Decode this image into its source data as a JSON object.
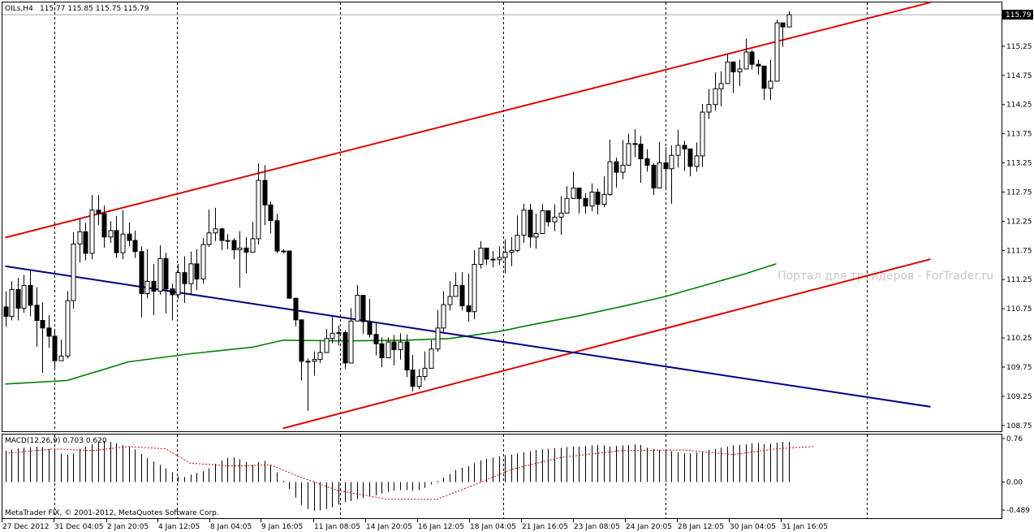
{
  "header": {
    "symbol": "OILs,H4",
    "ohlc": "115.77 115.85 115.75 115.79"
  },
  "macd": {
    "label": "MACD(12,26,9) 0.703 0.620",
    "axis_ticks": [
      "0.76",
      "0.00",
      "-0.489"
    ]
  },
  "copyright": "MetaTrader FIX, © 2001-2012, MetaQuotes Software Corp.",
  "watermark": "Портал для трейдеров - ForTrader.ru",
  "price_axis": {
    "ticks": [
      "115.25",
      "114.75",
      "114.25",
      "113.75",
      "113.25",
      "112.75",
      "112.25",
      "111.75",
      "111.25",
      "110.75",
      "110.25",
      "109.75",
      "109.25",
      "108.75"
    ],
    "current_price": "115.79"
  },
  "time_axis": {
    "labels": [
      "27 Dec 2012",
      "31 Dec 04:05",
      "2 Jan 20:05",
      "4 Jan 12:05",
      "8 Jan 04:05",
      "9 Jan 16:05",
      "11 Jan 08:05",
      "14 Jan 20:05",
      "16 Jan 12:05",
      "18 Jan 04:05",
      "21 Jan 16:05",
      "23 Jan 08:05",
      "24 Jan 20:05",
      "28 Jan 12:05",
      "30 Jan 04:05",
      "31 Jan 16:05"
    ]
  },
  "colors": {
    "channel": "#e00000",
    "trend": "#00007f",
    "moving_average": "#007f00",
    "signal": "#e00000"
  },
  "chart_data": {
    "type": "candlestick",
    "ylim": [
      108.65,
      116.0
    ],
    "candles": [
      [
        110.78,
        110.62,
        111.05,
        110.44
      ],
      [
        110.62,
        111.08,
        111.22,
        110.55
      ],
      [
        111.08,
        110.76,
        111.28,
        110.55
      ],
      [
        110.76,
        111.15,
        111.33,
        110.68
      ],
      [
        111.15,
        110.81,
        111.42,
        110.62
      ],
      [
        110.81,
        110.55,
        111.12,
        110.1
      ],
      [
        110.55,
        110.42,
        110.86,
        109.65
      ],
      [
        110.42,
        110.28,
        110.64,
        110.08
      ],
      [
        110.28,
        109.86,
        110.39,
        109.72
      ],
      [
        109.86,
        109.94,
        110.22,
        109.86
      ],
      [
        109.94,
        110.89,
        111.05,
        109.9
      ],
      [
        110.89,
        111.86,
        112.06,
        110.75
      ],
      [
        111.86,
        112.07,
        112.29,
        111.54
      ],
      [
        112.07,
        111.7,
        112.22,
        111.58
      ],
      [
        111.7,
        112.44,
        112.7,
        111.6
      ],
      [
        112.44,
        112.38,
        112.7,
        112.18
      ],
      [
        112.38,
        111.98,
        112.52,
        111.8
      ],
      [
        111.98,
        112.09,
        112.25,
        111.88
      ],
      [
        112.09,
        111.71,
        112.34,
        111.62
      ],
      [
        111.71,
        112.03,
        112.44,
        111.6
      ],
      [
        112.03,
        111.92,
        112.23,
        111.82
      ],
      [
        111.92,
        111.73,
        112.09,
        111.62
      ],
      [
        111.73,
        111.01,
        111.82,
        110.6
      ],
      [
        111.01,
        111.22,
        111.77,
        110.93
      ],
      [
        111.22,
        111.05,
        111.52,
        110.64
      ],
      [
        111.05,
        111.61,
        111.84,
        110.99
      ],
      [
        111.61,
        111.09,
        111.71,
        110.67
      ],
      [
        111.09,
        110.99,
        111.18,
        110.55
      ],
      [
        110.99,
        111.37,
        111.52,
        110.92
      ],
      [
        111.37,
        111.18,
        111.65,
        110.85
      ],
      [
        111.18,
        111.52,
        111.73,
        111.01
      ],
      [
        111.52,
        111.26,
        111.77,
        111.07
      ],
      [
        111.26,
        111.85,
        111.96,
        111.18
      ],
      [
        111.85,
        112.05,
        112.45,
        111.81
      ],
      [
        112.05,
        112.12,
        112.48,
        111.91
      ],
      [
        112.12,
        111.92,
        112.14,
        111.75
      ],
      [
        111.92,
        111.92,
        112.03,
        111.77
      ],
      [
        111.92,
        111.76,
        111.96,
        111.6
      ],
      [
        111.76,
        111.79,
        112.08,
        111.11
      ],
      [
        111.79,
        111.72,
        111.98,
        111.36
      ],
      [
        111.72,
        111.95,
        112.24,
        111.84
      ],
      [
        111.95,
        112.95,
        113.24,
        111.85
      ],
      [
        112.95,
        112.53,
        113.21,
        112.18
      ],
      [
        112.53,
        112.26,
        112.59,
        112.04
      ],
      [
        112.26,
        111.74,
        112.38,
        111.7
      ],
      [
        111.74,
        111.74,
        111.77,
        111.7
      ],
      [
        111.74,
        110.93,
        111.15,
        110.93
      ],
      [
        110.93,
        110.56,
        110.93,
        110.45
      ],
      [
        110.56,
        109.85,
        110.39,
        109.52
      ],
      [
        109.85,
        109.85,
        109.9,
        109.0
      ],
      [
        109.85,
        109.88,
        110.02,
        109.6
      ],
      [
        109.88,
        110.0,
        110.21,
        109.82
      ],
      [
        110.0,
        110.24,
        110.4,
        110.01
      ],
      [
        110.24,
        110.33,
        110.61,
        110.16
      ],
      [
        110.33,
        110.34,
        110.46,
        110.12
      ],
      [
        110.34,
        109.82,
        110.38,
        109.72
      ],
      [
        109.82,
        110.54,
        110.76,
        110.48
      ],
      [
        110.54,
        110.98,
        111.16,
        110.58
      ],
      [
        110.98,
        110.53,
        110.76,
        110.32
      ],
      [
        110.53,
        110.31,
        110.92,
        110.26
      ],
      [
        110.31,
        110.15,
        110.5,
        109.95
      ],
      [
        110.15,
        109.91,
        110.26,
        109.75
      ],
      [
        109.91,
        110.18,
        110.26,
        110.0
      ],
      [
        110.18,
        110.05,
        110.3,
        109.78
      ],
      [
        110.05,
        110.18,
        110.33,
        109.88
      ],
      [
        110.18,
        109.7,
        110.31,
        109.58
      ],
      [
        109.7,
        109.42,
        109.96,
        109.33
      ],
      [
        109.42,
        109.59,
        109.72,
        109.37
      ],
      [
        109.59,
        109.73,
        110.02,
        109.52
      ],
      [
        109.73,
        110.06,
        110.21,
        109.74
      ],
      [
        110.06,
        110.42,
        110.73,
        110.01
      ],
      [
        110.42,
        110.82,
        111.05,
        110.34
      ],
      [
        110.82,
        110.96,
        111.22,
        110.72
      ],
      [
        110.96,
        111.15,
        111.37,
        111.02
      ],
      [
        111.15,
        110.8,
        111.38,
        110.72
      ],
      [
        110.8,
        110.7,
        111.35,
        110.53
      ],
      [
        110.7,
        111.51,
        111.75,
        110.57
      ],
      [
        111.51,
        111.79,
        111.91,
        111.44
      ],
      [
        111.79,
        111.6,
        111.74,
        111.5
      ],
      [
        111.6,
        111.59,
        111.74,
        111.46
      ],
      [
        111.59,
        111.63,
        111.82,
        111.5
      ],
      [
        111.63,
        111.72,
        111.94,
        111.36
      ],
      [
        111.72,
        111.75,
        111.98,
        111.48
      ],
      [
        111.75,
        112.01,
        112.35,
        111.72
      ],
      [
        112.01,
        112.44,
        112.55,
        111.88
      ],
      [
        112.44,
        111.98,
        112.55,
        111.8
      ],
      [
        111.98,
        112.04,
        112.38,
        111.78
      ],
      [
        112.04,
        112.43,
        112.54,
        112.1
      ],
      [
        112.43,
        112.24,
        112.38,
        112.16
      ],
      [
        112.24,
        112.32,
        112.54,
        112.08
      ],
      [
        112.32,
        112.39,
        112.68,
        112.02
      ],
      [
        112.39,
        112.64,
        112.85,
        112.49
      ],
      [
        112.64,
        112.82,
        113.1,
        112.66
      ],
      [
        112.82,
        112.64,
        112.82,
        112.38
      ],
      [
        112.64,
        112.51,
        112.73,
        112.38
      ],
      [
        112.51,
        112.75,
        112.9,
        112.42
      ],
      [
        112.75,
        112.54,
        112.81,
        112.37
      ],
      [
        112.54,
        112.71,
        113.02,
        112.49
      ],
      [
        112.71,
        113.27,
        113.65,
        112.69
      ],
      [
        113.27,
        113.09,
        113.34,
        112.83
      ],
      [
        113.09,
        113.21,
        113.64,
        112.97
      ],
      [
        113.21,
        113.58,
        113.75,
        113.25
      ],
      [
        113.58,
        113.57,
        113.83,
        113.35
      ],
      [
        113.57,
        113.32,
        113.71,
        112.91
      ],
      [
        113.32,
        113.21,
        113.48,
        113.1
      ],
      [
        113.21,
        112.82,
        113.24,
        112.7
      ],
      [
        112.82,
        113.25,
        113.61,
        112.93
      ],
      [
        113.25,
        113.15,
        113.52,
        112.8
      ],
      [
        113.15,
        113.38,
        113.55,
        112.55
      ],
      [
        113.38,
        113.55,
        113.82,
        113.17
      ],
      [
        113.55,
        113.49,
        113.63,
        113.11
      ],
      [
        113.49,
        113.19,
        113.49,
        113.02
      ],
      [
        113.19,
        113.37,
        113.6,
        113.1
      ],
      [
        113.37,
        114.12,
        114.26,
        113.18
      ],
      [
        114.12,
        114.25,
        114.52,
        114.0
      ],
      [
        114.25,
        114.52,
        114.8,
        114.15
      ],
      [
        114.52,
        114.61,
        114.82,
        114.22
      ],
      [
        114.61,
        114.98,
        115.11,
        114.69
      ],
      [
        114.98,
        114.81,
        114.95,
        114.45
      ],
      [
        114.81,
        114.86,
        115.02,
        114.57
      ],
      [
        114.86,
        115.15,
        115.38,
        114.91
      ],
      [
        115.15,
        114.94,
        115.19,
        114.85
      ],
      [
        114.94,
        114.91,
        115.02,
        114.76
      ],
      [
        114.91,
        114.53,
        114.91,
        114.33
      ],
      [
        114.53,
        114.65,
        115.02,
        114.33
      ],
      [
        114.65,
        115.65,
        115.7,
        114.74
      ],
      [
        115.65,
        115.58,
        115.65,
        115.24
      ],
      [
        115.58,
        115.79,
        115.85,
        115.75
      ]
    ],
    "moving_average": [
      [
        0,
        109.46
      ],
      [
        10,
        109.52
      ],
      [
        20,
        109.84
      ],
      [
        30,
        109.98
      ],
      [
        40,
        110.09
      ],
      [
        45,
        110.21
      ],
      [
        55,
        110.2
      ],
      [
        65,
        110.21
      ],
      [
        72,
        110.24
      ],
      [
        80,
        110.36
      ],
      [
        86,
        110.49
      ],
      [
        93,
        110.63
      ],
      [
        100,
        110.79
      ],
      [
        107,
        110.96
      ],
      [
        113,
        111.14
      ],
      [
        120,
        111.35
      ],
      [
        125,
        111.52
      ]
    ],
    "channel_upper": [
      [
        0,
        111.97
      ],
      [
        150,
        116.0
      ]
    ],
    "channel_lower": [
      [
        45,
        108.7
      ],
      [
        150,
        111.6
      ]
    ],
    "trend_line": [
      [
        0,
        111.48
      ],
      [
        150,
        109.07
      ]
    ],
    "macd": {
      "ylim": [
        -0.63,
        0.83
      ],
      "histogram": [
        0.55,
        0.57,
        0.59,
        0.6,
        0.61,
        0.62,
        0.61,
        0.58,
        0.55,
        0.5,
        0.48,
        0.5,
        0.58,
        0.62,
        0.66,
        0.7,
        0.72,
        0.7,
        0.68,
        0.65,
        0.61,
        0.57,
        0.49,
        0.42,
        0.36,
        0.3,
        0.24,
        0.17,
        0.1,
        0.09,
        0.13,
        0.16,
        0.19,
        0.24,
        0.32,
        0.38,
        0.42,
        0.43,
        0.4,
        0.35,
        0.3,
        0.35,
        0.37,
        0.3,
        0.17,
        0.02,
        -0.12,
        -0.27,
        -0.4,
        -0.47,
        -0.5,
        -0.49,
        -0.47,
        -0.44,
        -0.39,
        -0.35,
        -0.33,
        -0.3,
        -0.28,
        -0.25,
        -0.23,
        -0.2,
        -0.17,
        -0.15,
        -0.14,
        -0.14,
        -0.15,
        -0.14,
        -0.1,
        -0.04,
        0.02,
        0.08,
        0.14,
        0.21,
        0.25,
        0.28,
        0.33,
        0.38,
        0.41,
        0.43,
        0.45,
        0.47,
        0.48,
        0.5,
        0.52,
        0.54,
        0.56,
        0.57,
        0.58,
        0.59,
        0.6,
        0.61,
        0.62,
        0.62,
        0.63,
        0.64,
        0.65,
        0.64,
        0.62,
        0.63,
        0.64,
        0.65,
        0.66,
        0.65,
        0.6,
        0.58,
        0.56,
        0.55,
        0.54,
        0.52,
        0.5,
        0.5,
        0.52,
        0.54,
        0.56,
        0.58,
        0.6,
        0.62,
        0.64,
        0.65,
        0.66,
        0.68,
        0.68,
        0.66,
        0.67,
        0.69,
        0.7,
        0.703
      ],
      "signal": [
        [
          0,
          0.5
        ],
        [
          8,
          0.58
        ],
        [
          14,
          0.55
        ],
        [
          20,
          0.62
        ],
        [
          26,
          0.58
        ],
        [
          30,
          0.33
        ],
        [
          37,
          0.28
        ],
        [
          43,
          0.3
        ],
        [
          48,
          0.08
        ],
        [
          54,
          -0.15
        ],
        [
          62,
          -0.3
        ],
        [
          70,
          -0.3
        ],
        [
          76,
          -0.05
        ],
        [
          82,
          0.22
        ],
        [
          90,
          0.43
        ],
        [
          100,
          0.55
        ],
        [
          110,
          0.56
        ],
        [
          118,
          0.48
        ],
        [
          125,
          0.58
        ],
        [
          131,
          0.62
        ]
      ]
    }
  }
}
